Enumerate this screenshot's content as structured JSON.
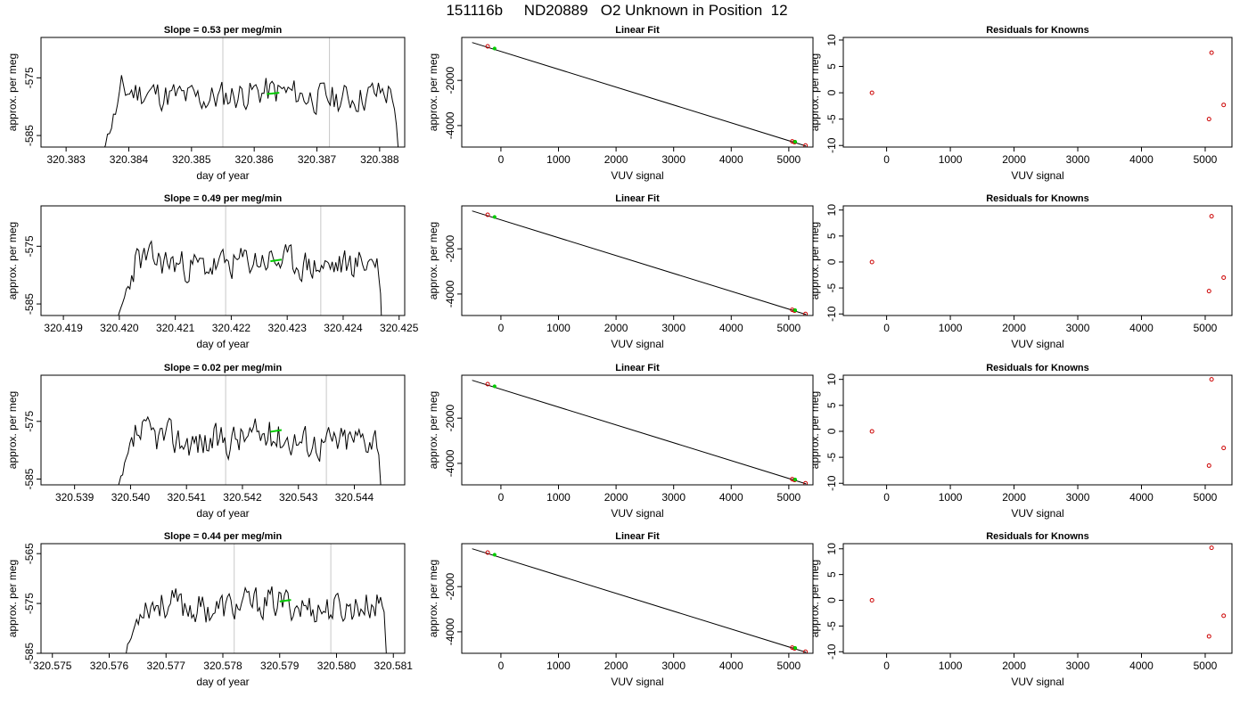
{
  "main_title": "151116b     ND20889   O2 Unknown in Position  12",
  "chart_data": [
    {
      "type": "line",
      "title": "Slope =  0.53  per meg/min",
      "xlabel": "day of year",
      "ylabel": "approx. per meg",
      "xlim": [
        320.3826,
        320.3884
      ],
      "ylim": [
        -587,
        -568
      ],
      "xticks": [
        "320.383",
        "320.384",
        "320.385",
        "320.386",
        "320.387",
        "320.388"
      ],
      "yticks": [
        "-575",
        "-585"
      ],
      "vlines": [
        320.3855,
        320.3872
      ],
      "series": [
        {
          "color": "#000000",
          "start": 320.3835,
          "end": 320.3883,
          "base": -578,
          "amp": 2.4,
          "seed": 11
        }
      ],
      "highlight": {
        "x": [
          320.3862,
          320.3864
        ],
        "y": [
          -577.8,
          -577.6
        ],
        "color": "#00cc00"
      }
    },
    {
      "type": "line",
      "title": "Linear Fit",
      "xlabel": "VUV signal",
      "ylabel": "approx. per meg",
      "xlim": [
        -680,
        5420
      ],
      "ylim": [
        -4950,
        -100
      ],
      "xticks": [
        "0",
        "1000",
        "2000",
        "3000",
        "4000",
        "5000"
      ],
      "yticks": [
        "-2000",
        "-4000"
      ],
      "line": {
        "x": [
          -500,
          5300
        ],
        "y": [
          -324,
          -4905
        ]
      },
      "known_points": {
        "x": [
          -230,
          5060,
          5100,
          5290
        ],
        "y": [
          -495,
          -4700,
          -4735,
          -4880
        ],
        "color": "#cc0000"
      },
      "unknown_points": {
        "x": [
          -110,
          5110
        ],
        "y": [
          -590,
          -4715
        ],
        "color": "#00cc00"
      }
    },
    {
      "type": "scatter",
      "title": "Residuals for Knowns",
      "xlabel": "VUV signal",
      "ylabel": "approx. per meg",
      "xlim": [
        -680,
        5420
      ],
      "ylim": [
        -10.3,
        10.5
      ],
      "xticks": [
        "0",
        "1000",
        "2000",
        "3000",
        "4000",
        "5000"
      ],
      "yticks": [
        "10",
        "5",
        "0",
        "-5",
        "-10"
      ],
      "points": {
        "x": [
          -230,
          5100,
          5060,
          5290
        ],
        "y": [
          0,
          7.6,
          -5,
          -2.3
        ],
        "color": "#cc0000"
      }
    },
    {
      "type": "line",
      "title": "Slope =  0.49  per meg/min",
      "xlabel": "day of year",
      "ylabel": "approx. per meg",
      "xlim": [
        320.4186,
        320.4251
      ],
      "ylim": [
        -587,
        -568
      ],
      "xticks": [
        "320.419",
        "320.420",
        "320.421",
        "320.422",
        "320.423",
        "320.424",
        "320.425"
      ],
      "yticks": [
        "-575",
        "-585"
      ],
      "vlines": [
        320.4219,
        320.4236
      ],
      "series": [
        {
          "color": "#000000",
          "start": 320.4199,
          "end": 320.4247,
          "base": -578,
          "amp": 2.4,
          "seed": 23
        }
      ],
      "highlight": {
        "x": [
          320.4227,
          320.4229
        ],
        "y": [
          -577.6,
          -577.3
        ],
        "color": "#00cc00"
      }
    },
    {
      "type": "line",
      "title": "Linear Fit",
      "xlabel": "VUV signal",
      "ylabel": "approx. per meg",
      "xlim": [
        -680,
        5420
      ],
      "ylim": [
        -4950,
        -100
      ],
      "xticks": [
        "0",
        "1000",
        "2000",
        "3000",
        "4000",
        "5000"
      ],
      "yticks": [
        "-2000",
        "-4000"
      ],
      "line": {
        "x": [
          -500,
          5300
        ],
        "y": [
          -324,
          -4905
        ]
      },
      "known_points": {
        "x": [
          -230,
          5060,
          5100,
          5290
        ],
        "y": [
          -495,
          -4700,
          -4735,
          -4880
        ],
        "color": "#cc0000"
      },
      "unknown_points": {
        "x": [
          -110,
          5110
        ],
        "y": [
          -590,
          -4715
        ],
        "color": "#00cc00"
      }
    },
    {
      "type": "scatter",
      "title": "Residuals for Knowns",
      "xlabel": "VUV signal",
      "ylabel": "approx. per meg",
      "xlim": [
        -680,
        5420
      ],
      "ylim": [
        -10.3,
        10.8
      ],
      "xticks": [
        "0",
        "1000",
        "2000",
        "3000",
        "4000",
        "5000"
      ],
      "yticks": [
        "10",
        "5",
        "0",
        "-5",
        "-10"
      ],
      "points": {
        "x": [
          -230,
          5100,
          5060,
          5290
        ],
        "y": [
          0,
          8.8,
          -5.6,
          -3
        ],
        "color": "#cc0000"
      }
    },
    {
      "type": "line",
      "title": "Slope =  0.02  per meg/min",
      "xlabel": "day of year",
      "ylabel": "approx. per meg",
      "xlim": [
        320.5384,
        320.5449
      ],
      "ylim": [
        -586,
        -567
      ],
      "xticks": [
        "320.539",
        "320.540",
        "320.541",
        "320.542",
        "320.543",
        "320.544"
      ],
      "yticks": [
        "-575",
        "-585"
      ],
      "vlines": [
        320.5417,
        320.5435
      ],
      "series": [
        {
          "color": "#000000",
          "start": 320.5397,
          "end": 320.5445,
          "base": -578,
          "amp": 2.6,
          "seed": 37
        }
      ],
      "highlight": {
        "x": [
          320.5425,
          320.5427
        ],
        "y": [
          -576.8,
          -576.5
        ],
        "color": "#00cc00"
      }
    },
    {
      "type": "line",
      "title": "Linear Fit",
      "xlabel": "VUV signal",
      "ylabel": "approx. per meg",
      "xlim": [
        -680,
        5420
      ],
      "ylim": [
        -4950,
        -100
      ],
      "xticks": [
        "0",
        "1000",
        "2000",
        "3000",
        "4000",
        "5000"
      ],
      "yticks": [
        "-2000",
        "-4000"
      ],
      "line": {
        "x": [
          -500,
          5300
        ],
        "y": [
          -324,
          -4905
        ]
      },
      "known_points": {
        "x": [
          -230,
          5060,
          5100,
          5290
        ],
        "y": [
          -495,
          -4700,
          -4735,
          -4880
        ],
        "color": "#cc0000"
      },
      "unknown_points": {
        "x": [
          -110,
          5110
        ],
        "y": [
          -590,
          -4715
        ],
        "color": "#00cc00"
      }
    },
    {
      "type": "scatter",
      "title": "Residuals for Knowns",
      "xlabel": "VUV signal",
      "ylabel": "approx. per meg",
      "xlim": [
        -680,
        5420
      ],
      "ylim": [
        -10.3,
        10.8
      ],
      "xticks": [
        "0",
        "1000",
        "2000",
        "3000",
        "4000",
        "5000"
      ],
      "yticks": [
        "10",
        "5",
        "0",
        "-5",
        "-10"
      ],
      "points": {
        "x": [
          -230,
          5100,
          5060,
          5290
        ],
        "y": [
          0,
          10,
          -6.6,
          -3.2
        ],
        "color": "#cc0000"
      }
    },
    {
      "type": "line",
      "title": "Slope =  0.44  per meg/min",
      "xlabel": "day of year",
      "ylabel": "approx. per meg",
      "xlim": [
        320.5748,
        320.5812
      ],
      "ylim": [
        -585,
        -563
      ],
      "xticks": [
        "320.575",
        "320.576",
        "320.577",
        "320.578",
        "320.579",
        "320.580",
        "320.581"
      ],
      "yticks": [
        "-565",
        "-575",
        "-585"
      ],
      "vlines": [
        320.5782,
        320.5799
      ],
      "series": [
        {
          "color": "#000000",
          "start": 320.5762,
          "end": 320.5809,
          "base": -575.5,
          "amp": 2.8,
          "seed": 53
        }
      ],
      "highlight": {
        "x": [
          320.579,
          320.5792
        ],
        "y": [
          -574.6,
          -574.3
        ],
        "color": "#00cc00"
      }
    },
    {
      "type": "line",
      "title": "Linear Fit",
      "xlabel": "VUV signal",
      "ylabel": "approx. per meg",
      "xlim": [
        -680,
        5420
      ],
      "ylim": [
        -4950,
        -100
      ],
      "xticks": [
        "0",
        "1000",
        "2000",
        "3000",
        "4000",
        "5000"
      ],
      "yticks": [
        "-2000",
        "-4000"
      ],
      "line": {
        "x": [
          -500,
          5300
        ],
        "y": [
          -324,
          -4905
        ]
      },
      "known_points": {
        "x": [
          -230,
          5060,
          5100,
          5290
        ],
        "y": [
          -495,
          -4700,
          -4735,
          -4880
        ],
        "color": "#cc0000"
      },
      "unknown_points": {
        "x": [
          -110,
          5110
        ],
        "y": [
          -590,
          -4715
        ],
        "color": "#00cc00"
      }
    },
    {
      "type": "scatter",
      "title": "Residuals for Knowns",
      "xlabel": "VUV signal",
      "ylabel": "approx. per meg",
      "xlim": [
        -680,
        5420
      ],
      "ylim": [
        -10.3,
        11
      ],
      "xticks": [
        "0",
        "1000",
        "2000",
        "3000",
        "4000",
        "5000"
      ],
      "yticks": [
        "10",
        "5",
        "0",
        "-5",
        "-10"
      ],
      "points": {
        "x": [
          -230,
          5100,
          5060,
          5290
        ],
        "y": [
          0,
          10.2,
          -7,
          -3
        ],
        "color": "#cc0000"
      }
    }
  ]
}
